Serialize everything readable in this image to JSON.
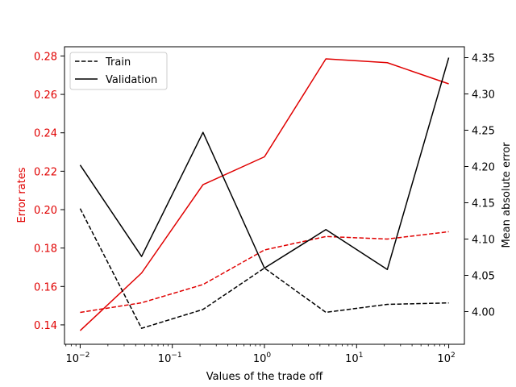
{
  "chart_data": {
    "type": "line",
    "xlabel": "Values of the trade off",
    "xscale": "log",
    "xlim": [
      0.00676,
      147.9
    ],
    "x": [
      0.01,
      0.0464,
      0.2154,
      1,
      4.642,
      21.54,
      100
    ],
    "xticks": [
      0.01,
      0.1,
      1,
      10,
      100
    ],
    "xtick_labels": [
      [
        "10",
        "−2"
      ],
      [
        "10",
        "−1"
      ],
      [
        "10",
        "0"
      ],
      [
        "10",
        "1"
      ],
      [
        "10",
        "2"
      ]
    ],
    "left_axis": {
      "label": "Error rates",
      "color": "#e00000",
      "ylim": [
        0.1299,
        0.2848
      ],
      "ticks": [
        "0.14",
        "0.16",
        "0.18",
        "0.20",
        "0.22",
        "0.24",
        "0.26",
        "0.28"
      ]
    },
    "right_axis": {
      "label": "Mean absolute error",
      "color": "#000000",
      "ylim": [
        3.955,
        4.365
      ],
      "ticks": [
        "4.00",
        "4.05",
        "4.10",
        "4.15",
        "4.20",
        "4.25",
        "4.30",
        "4.35"
      ]
    },
    "series": [
      {
        "axis": "left",
        "style": "dashed",
        "color": "#e00000",
        "values": [
          0.1465,
          0.1515,
          0.161,
          0.179,
          0.186,
          0.1847,
          0.1885
        ]
      },
      {
        "axis": "left",
        "style": "solid",
        "color": "#e00000",
        "values": [
          0.137,
          0.167,
          0.213,
          0.2275,
          0.2785,
          0.2765,
          0.2655
        ]
      },
      {
        "axis": "right",
        "style": "dashed",
        "color": "#000000",
        "values": [
          4.142,
          3.977,
          4.003,
          4.06,
          3.999,
          4.01,
          4.012
        ]
      },
      {
        "axis": "right",
        "style": "solid",
        "color": "#000000",
        "values": [
          4.202,
          4.076,
          4.247,
          4.06,
          4.113,
          4.058,
          4.35
        ]
      }
    ],
    "legend": {
      "placement": "top-left",
      "entries": [
        {
          "name": "Train",
          "style": "dashed",
          "color": "#000000"
        },
        {
          "name": "Validation",
          "style": "solid",
          "color": "#000000"
        }
      ]
    },
    "grid": false
  }
}
